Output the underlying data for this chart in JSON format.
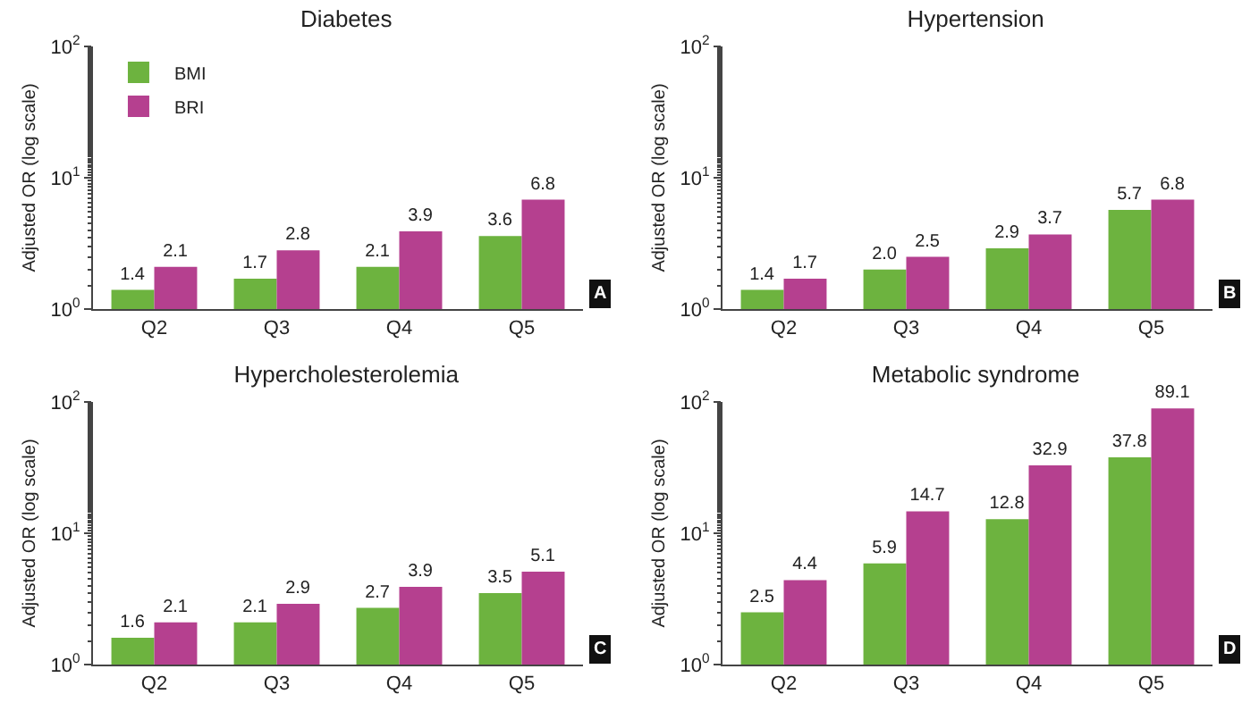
{
  "chart_data": [
    {
      "type": "bar",
      "title": "Diabetes",
      "ylabel": "Adjusted OR (log scale)",
      "categories": [
        "Q2",
        "Q3",
        "Q4",
        "Q5"
      ],
      "log": true,
      "ylim": [
        1,
        100
      ],
      "yticks": [
        {
          "value": 1,
          "label": "10$^{0}$"
        },
        {
          "value": 10,
          "label": "10$^{1}$"
        },
        {
          "value": 100,
          "label": "10$^{2}$"
        }
      ],
      "grid": false,
      "legend": "top left",
      "annotations": [
        "A"
      ],
      "series": [
        {
          "name": "BMI",
          "color": "#6db33f",
          "values": [
            1.4,
            1.7,
            2.1,
            3.6
          ],
          "value_labels": [
            "1.4",
            "1.7",
            "2.1",
            "3.6"
          ]
        },
        {
          "name": "BRI",
          "color": "#b5408f",
          "values": [
            2.1,
            2.8,
            3.9,
            6.8
          ],
          "value_labels": [
            "2.1",
            "2.8",
            "3.9",
            "6.8"
          ]
        }
      ]
    },
    {
      "type": "bar",
      "title": "Hypertension",
      "ylabel": "Adjusted OR (log scale)",
      "categories": [
        "Q2",
        "Q3",
        "Q4",
        "Q5"
      ],
      "log": true,
      "ylim": [
        1,
        100
      ],
      "yticks": [
        {
          "value": 1,
          "label": "10$^{0}$"
        },
        {
          "value": 10,
          "label": "10$^{1}$"
        },
        {
          "value": 100,
          "label": "10$^{2}$"
        }
      ],
      "grid": false,
      "annotations": [
        "B"
      ],
      "series": [
        {
          "color": "#6db33f",
          "values": [
            1.4,
            2.0,
            2.9,
            5.7
          ],
          "value_labels": [
            "1.4",
            "2.0",
            "2.9",
            "5.7"
          ]
        },
        {
          "color": "#b5408f",
          "values": [
            1.7,
            2.5,
            3.7,
            6.8
          ],
          "value_labels": [
            "1.7",
            "2.5",
            "3.7",
            "6.8"
          ]
        }
      ]
    },
    {
      "type": "bar",
      "title": "Hypercholesterolemia",
      "ylabel": "Adjusted OR (log scale)",
      "categories": [
        "Q2",
        "Q3",
        "Q4",
        "Q5"
      ],
      "log": true,
      "ylim": [
        1,
        100
      ],
      "yticks": [
        {
          "value": 1,
          "label": "10$^{0}$"
        },
        {
          "value": 10,
          "label": "10$^{1}$"
        },
        {
          "value": 100,
          "label": "10$^{2}$"
        }
      ],
      "grid": false,
      "annotations": [
        "C"
      ],
      "series": [
        {
          "color": "#6db33f",
          "values": [
            1.6,
            2.1,
            2.7,
            3.5
          ],
          "value_labels": [
            "1.6",
            "2.1",
            "2.7",
            "3.5"
          ]
        },
        {
          "color": "#b5408f",
          "values": [
            2.1,
            2.9,
            3.9,
            5.1
          ],
          "value_labels": [
            "2.1",
            "2.9",
            "3.9",
            "5.1"
          ]
        }
      ]
    },
    {
      "type": "bar",
      "title": "Metabolic syndrome",
      "ylabel": "Adjusted OR (log scale)",
      "categories": [
        "Q2",
        "Q3",
        "Q4",
        "Q5"
      ],
      "log": true,
      "ylim": [
        1,
        100
      ],
      "yticks": [
        {
          "value": 1,
          "label": "10$^{0}$"
        },
        {
          "value": 10,
          "label": "10$^{1}$"
        },
        {
          "value": 100,
          "label": "10$^{2}$"
        }
      ],
      "grid": false,
      "annotations": [
        "D"
      ],
      "series": [
        {
          "color": "#6db33f",
          "values": [
            2.5,
            5.9,
            12.8,
            37.8
          ],
          "value_labels": [
            "2.5",
            "5.9",
            "12.8",
            "37.8"
          ]
        },
        {
          "color": "#b5408f",
          "values": [
            4.4,
            14.7,
            32.9,
            89.1
          ],
          "value_labels": [
            "4.4",
            "14.7",
            "32.9",
            "89.1"
          ]
        }
      ]
    }
  ]
}
